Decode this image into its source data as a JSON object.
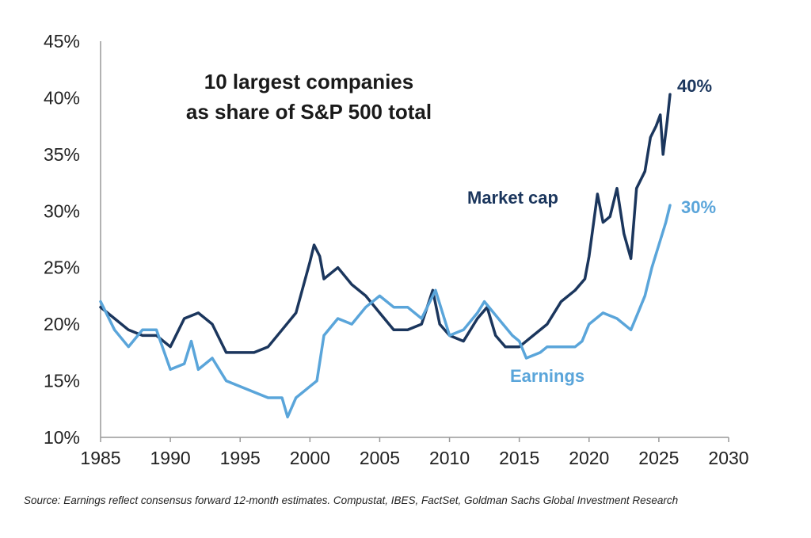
{
  "chart_data": {
    "type": "line",
    "title": [
      "10 largest companies",
      "as share of S&P 500 total"
    ],
    "xlabel": "",
    "ylabel": "",
    "xlim": [
      1985,
      2030
    ],
    "ylim": [
      10,
      45
    ],
    "xticks": [
      "1985",
      "1990",
      "1995",
      "2000",
      "2005",
      "2010",
      "2015",
      "2020",
      "2025",
      "2030"
    ],
    "xtick_values": [
      1985,
      1990,
      1995,
      2000,
      2005,
      2010,
      2015,
      2020,
      2025,
      2030
    ],
    "yticks": [
      "10%",
      "15%",
      "20%",
      "25%",
      "30%",
      "35%",
      "40%",
      "45%"
    ],
    "ytick_values": [
      10,
      15,
      20,
      25,
      30,
      35,
      40,
      45
    ],
    "grid": false,
    "series": [
      {
        "name": "Market cap",
        "color": "#1b365d",
        "end_label": "40%",
        "x": [
          1985,
          1986,
          1987,
          1988,
          1989,
          1990,
          1991,
          1992,
          1993,
          1994,
          1995,
          1996,
          1997,
          1998,
          1999,
          2000,
          2000.3,
          2000.7,
          2001,
          2002,
          2003,
          2004,
          2005,
          2006,
          2007,
          2008,
          2008.8,
          2009.3,
          2010,
          2011,
          2012,
          2012.7,
          2013.3,
          2014,
          2015,
          2016,
          2017,
          2018,
          2019,
          2019.7,
          2020,
          2020.6,
          2021,
          2021.5,
          2022,
          2022.5,
          2023,
          2023.4,
          2024,
          2024.4,
          2024.8,
          2025.1,
          2025.3,
          2025.6,
          2025.8
        ],
        "y": [
          21.5,
          20.5,
          19.5,
          19,
          19,
          18,
          20.5,
          21,
          20,
          17.5,
          17.5,
          17.5,
          18,
          19.5,
          21,
          25.5,
          27,
          26,
          24,
          25,
          23.5,
          22.5,
          21,
          19.5,
          19.5,
          20,
          23,
          20,
          19,
          18.5,
          20.5,
          21.5,
          19,
          18,
          18,
          19,
          20,
          22,
          23,
          24,
          26,
          31.5,
          29,
          29.5,
          32,
          28,
          25.8,
          32,
          33.5,
          36.5,
          37.5,
          38.5,
          35,
          38,
          40.3
        ]
      },
      {
        "name": "Earnings",
        "color": "#5aa5da",
        "end_label": "30%",
        "x": [
          1985,
          1986,
          1987,
          1988,
          1989,
          1990,
          1991,
          1991.5,
          1992,
          1993,
          1994,
          1995,
          1996,
          1997,
          1998,
          1998.4,
          1999,
          2000,
          2000.5,
          2001,
          2002,
          2003,
          2004,
          2005,
          2006,
          2007,
          2008,
          2009,
          2010,
          2011,
          2012,
          2012.5,
          2013.5,
          2014.5,
          2015,
          2015.5,
          2016.5,
          2017,
          2018,
          2019,
          2019.5,
          2020,
          2021,
          2022,
          2023,
          2023.5,
          2024,
          2024.5,
          2025,
          2025.5,
          2025.8
        ],
        "y": [
          22,
          19.5,
          18,
          19.5,
          19.5,
          16,
          16.5,
          18.5,
          16,
          17,
          15,
          14.5,
          14,
          13.5,
          13.5,
          11.8,
          13.5,
          14.5,
          15,
          19,
          20.5,
          20,
          21.5,
          22.5,
          21.5,
          21.5,
          20.5,
          23,
          19,
          19.5,
          21,
          22,
          20.5,
          19,
          18.5,
          17,
          17.5,
          18,
          18,
          18,
          18.5,
          20,
          21,
          20.5,
          19.5,
          21,
          22.5,
          25,
          27,
          29,
          30.5
        ]
      }
    ],
    "annotations": [
      "Market cap",
      "Earnings"
    ]
  },
  "footer": {
    "source": "Source: Earnings reflect consensus forward 12-month estimates.  Compustat, IBES, FactSet, Goldman Sachs Global Investment Research"
  }
}
